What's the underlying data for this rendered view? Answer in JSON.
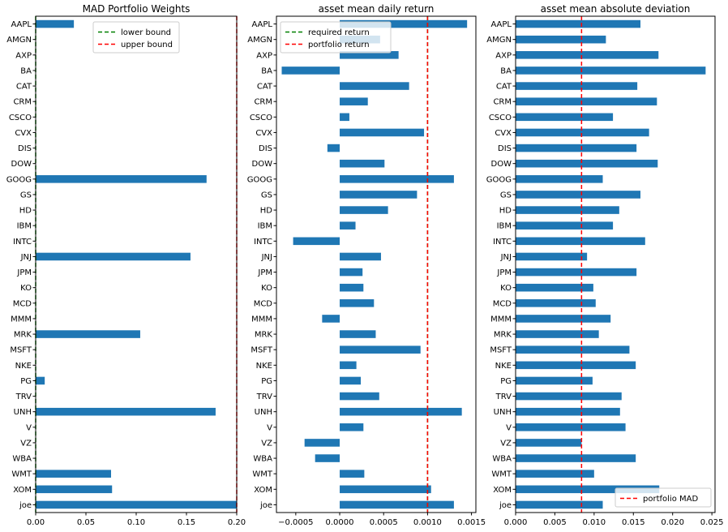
{
  "chart_data": [
    {
      "type": "bar",
      "orientation": "horizontal",
      "title": "MAD Portfolio Weights",
      "xlabel": "",
      "ylabel": "",
      "xlim": [
        0.0,
        0.2
      ],
      "xticks": [
        0.0,
        0.05,
        0.1,
        0.15,
        0.2
      ],
      "xtick_labels": [
        "0.00",
        "0.05",
        "0.10",
        "0.15",
        "0.20"
      ],
      "xtick_decimals": 2,
      "categories": [
        "AAPL",
        "AMGN",
        "AXP",
        "BA",
        "CAT",
        "CRM",
        "CSCO",
        "CVX",
        "DIS",
        "DOW",
        "GOOG",
        "GS",
        "HD",
        "IBM",
        "INTC",
        "JNJ",
        "JPM",
        "KO",
        "MCD",
        "MMM",
        "MRK",
        "MSFT",
        "NKE",
        "PG",
        "TRV",
        "UNH",
        "V",
        "VZ",
        "WBA",
        "WMT",
        "XOM",
        "joe"
      ],
      "values": [
        0.038,
        0,
        0,
        0,
        0,
        0,
        0,
        0,
        0,
        0,
        0.17,
        0,
        0,
        0,
        0,
        0.154,
        0,
        0,
        0,
        0,
        0.104,
        0,
        0,
        0.009,
        0,
        0.179,
        0,
        0,
        0,
        0.075,
        0.076,
        0.2
      ],
      "bar_color": "#1f77b4",
      "grid": false,
      "vlines": [
        {
          "value": 0.0,
          "label": "lower bound",
          "color": "#008000"
        },
        {
          "value": 0.2,
          "label": "upper bound",
          "color": "#ff0000"
        }
      ],
      "legend": {
        "position": "top-center",
        "entries": [
          "lower bound",
          "upper bound"
        ]
      }
    },
    {
      "type": "bar",
      "orientation": "horizontal",
      "title": "asset mean daily return",
      "xlabel": "",
      "ylabel": "",
      "xlim": [
        -0.00072,
        0.00155
      ],
      "xticks": [
        -0.0005,
        0.0,
        0.0005,
        0.001,
        0.0015
      ],
      "xtick_labels": [
        "−0.0005",
        "0.0000",
        "0.0005",
        "0.0010",
        "0.0015"
      ],
      "xtick_decimals": 4,
      "categories": [
        "AAPL",
        "AMGN",
        "AXP",
        "BA",
        "CAT",
        "CRM",
        "CSCO",
        "CVX",
        "DIS",
        "DOW",
        "GOOG",
        "GS",
        "HD",
        "IBM",
        "INTC",
        "JNJ",
        "JPM",
        "KO",
        "MCD",
        "MMM",
        "MRK",
        "MSFT",
        "NKE",
        "PG",
        "TRV",
        "UNH",
        "V",
        "VZ",
        "WBA",
        "WMT",
        "XOM",
        "joe"
      ],
      "values": [
        0.00145,
        0.00046,
        0.00067,
        -0.00066,
        0.00079,
        0.00032,
        0.00011,
        0.00096,
        -0.00014,
        0.00051,
        0.0013,
        0.00088,
        0.00055,
        0.00018,
        -0.00053,
        0.00047,
        0.00026,
        0.00027,
        0.00039,
        -0.0002,
        0.00041,
        0.00092,
        0.00019,
        0.00024,
        0.00045,
        0.00139,
        0.00027,
        -0.0004,
        -0.00028,
        0.00028,
        0.00104,
        0.0013
      ],
      "bar_color": "#1f77b4",
      "grid": false,
      "vlines": [
        {
          "value": 0.001,
          "label": "required return",
          "color": "#008000"
        },
        {
          "value": 0.001,
          "label": "portfolio return",
          "color": "#ff0000"
        }
      ],
      "legend": {
        "position": "top-left",
        "entries": [
          "required return",
          "portfolio return"
        ]
      }
    },
    {
      "type": "bar",
      "orientation": "horizontal",
      "title": "asset mean absolute deviation",
      "xlabel": "",
      "ylabel": "",
      "xlim": [
        0.0,
        0.0254
      ],
      "xticks": [
        0.0,
        0.005,
        0.01,
        0.015,
        0.02,
        0.025
      ],
      "xtick_labels": [
        "0.000",
        "0.005",
        "0.010",
        "0.015",
        "0.020",
        "0.025"
      ],
      "xtick_decimals": 3,
      "categories": [
        "AAPL",
        "AMGN",
        "AXP",
        "BA",
        "CAT",
        "CRM",
        "CSCO",
        "CVX",
        "DIS",
        "DOW",
        "GOOG",
        "GS",
        "HD",
        "IBM",
        "INTC",
        "JNJ",
        "JPM",
        "KO",
        "MCD",
        "MMM",
        "MRK",
        "MSFT",
        "NKE",
        "PG",
        "TRV",
        "UNH",
        "V",
        "VZ",
        "WBA",
        "WMT",
        "XOM",
        "joe"
      ],
      "values": [
        0.0159,
        0.0115,
        0.0182,
        0.0242,
        0.0155,
        0.018,
        0.0124,
        0.017,
        0.0154,
        0.0181,
        0.0111,
        0.0159,
        0.0132,
        0.0124,
        0.0165,
        0.0091,
        0.0154,
        0.0099,
        0.0102,
        0.0121,
        0.0106,
        0.0145,
        0.0153,
        0.0098,
        0.0135,
        0.0133,
        0.014,
        0.0084,
        0.0153,
        0.01,
        0.0183,
        0.0111
      ],
      "bar_color": "#1f77b4",
      "grid": false,
      "vlines": [
        {
          "value": 0.0084,
          "label": "portfolio MAD",
          "color": "#ff0000"
        }
      ],
      "legend": {
        "position": "bottom-right",
        "entries": [
          "portfolio MAD"
        ]
      }
    }
  ]
}
